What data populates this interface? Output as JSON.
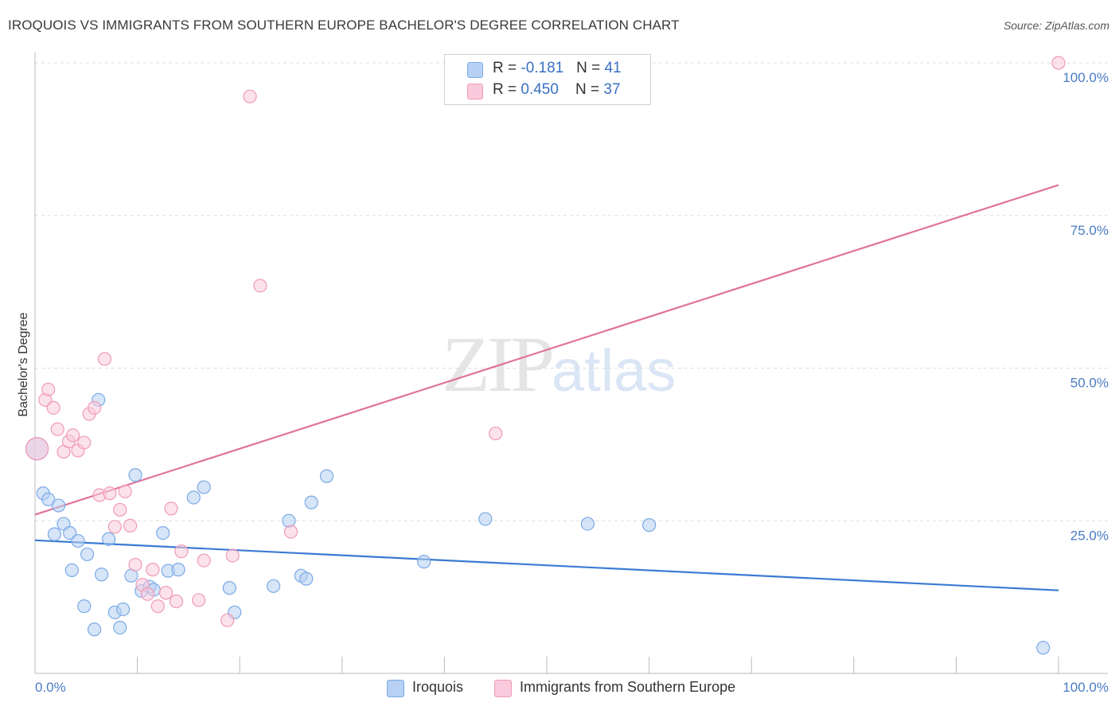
{
  "title": "IROQUOIS VS IMMIGRANTS FROM SOUTHERN EUROPE BACHELOR'S DEGREE CORRELATION CHART",
  "source": "Source: ZipAtlas.com",
  "watermark": {
    "zip": "ZIP",
    "atlas": "atlas"
  },
  "legend": {
    "rows": [
      {
        "r_label": "R = ",
        "r_value": "-0.181",
        "n_label": "N = ",
        "n_value": "41",
        "color": "#aac8f0"
      },
      {
        "r_label": "R = ",
        "r_value": "0.450",
        "n_label": "N = ",
        "n_value": "37",
        "color": "#f6bcd0"
      }
    ]
  },
  "chart_data": {
    "type": "scatter",
    "title": "IROQUOIS VS IMMIGRANTS FROM SOUTHERN EUROPE BACHELOR'S DEGREE CORRELATION CHART",
    "xlabel": "",
    "ylabel": "Bachelor's Degree",
    "xlim": [
      0,
      100
    ],
    "ylim": [
      0,
      100
    ],
    "x_tick_labels": [
      "0.0%",
      "100.0%"
    ],
    "y_ticks": [
      25,
      50,
      75,
      100
    ],
    "y_tick_labels": [
      "25.0%",
      "50.0%",
      "75.0%",
      "100.0%"
    ],
    "grid": "horizontal dashed",
    "legend_position": "top-center",
    "series": [
      {
        "name": "Iroquois",
        "color": "#7aaae6",
        "fill": "#b7d0f3",
        "trend": {
          "x": [
            0,
            100
          ],
          "y": [
            21.8,
            13.6
          ]
        },
        "points": [
          [
            0.2,
            36.8
          ],
          [
            0.8,
            29.5
          ],
          [
            1.3,
            28.5
          ],
          [
            1.9,
            22.8
          ],
          [
            2.3,
            27.5
          ],
          [
            2.8,
            24.5
          ],
          [
            3.4,
            23.0
          ],
          [
            3.6,
            16.9
          ],
          [
            4.2,
            21.7
          ],
          [
            4.8,
            11.0
          ],
          [
            5.1,
            19.5
          ],
          [
            5.8,
            7.2
          ],
          [
            6.2,
            44.8
          ],
          [
            6.5,
            16.2
          ],
          [
            7.2,
            22.0
          ],
          [
            7.8,
            10.0
          ],
          [
            8.3,
            7.5
          ],
          [
            8.6,
            10.5
          ],
          [
            9.4,
            16.0
          ],
          [
            9.8,
            32.5
          ],
          [
            10.4,
            13.5
          ],
          [
            11.2,
            14.2
          ],
          [
            11.6,
            13.7
          ],
          [
            12.5,
            23.0
          ],
          [
            13.0,
            16.8
          ],
          [
            14.0,
            17.0
          ],
          [
            15.5,
            28.8
          ],
          [
            16.5,
            30.5
          ],
          [
            19.0,
            14.0
          ],
          [
            19.5,
            10.0
          ],
          [
            23.3,
            14.3
          ],
          [
            24.8,
            25.0
          ],
          [
            26.0,
            16.0
          ],
          [
            26.5,
            15.5
          ],
          [
            27.0,
            28.0
          ],
          [
            28.5,
            32.3
          ],
          [
            38.0,
            18.3
          ],
          [
            44.0,
            25.3
          ],
          [
            54.0,
            24.5
          ],
          [
            60.0,
            24.3
          ],
          [
            98.5,
            4.2
          ]
        ]
      },
      {
        "name": "Immigrants from Southern Europe",
        "color": "#ef9ab8",
        "fill": "#f9cadb",
        "trend": {
          "x": [
            0,
            100
          ],
          "y": [
            26.0,
            80.0
          ]
        },
        "points": [
          [
            0.2,
            36.8
          ],
          [
            1.0,
            44.8
          ],
          [
            1.3,
            46.5
          ],
          [
            1.8,
            43.5
          ],
          [
            2.2,
            40.0
          ],
          [
            2.8,
            36.3
          ],
          [
            3.3,
            38.0
          ],
          [
            3.7,
            39.0
          ],
          [
            4.2,
            36.5
          ],
          [
            4.8,
            37.8
          ],
          [
            5.3,
            42.5
          ],
          [
            5.8,
            43.5
          ],
          [
            6.3,
            29.2
          ],
          [
            6.8,
            51.5
          ],
          [
            7.3,
            29.5
          ],
          [
            7.8,
            24.0
          ],
          [
            8.3,
            26.8
          ],
          [
            8.8,
            29.8
          ],
          [
            9.3,
            24.2
          ],
          [
            9.8,
            17.8
          ],
          [
            10.5,
            14.5
          ],
          [
            11.0,
            13.0
          ],
          [
            11.5,
            17.0
          ],
          [
            12.0,
            11.0
          ],
          [
            12.8,
            13.2
          ],
          [
            13.3,
            27.0
          ],
          [
            13.8,
            11.8
          ],
          [
            14.3,
            20.0
          ],
          [
            16.0,
            12.0
          ],
          [
            16.5,
            18.5
          ],
          [
            18.8,
            8.7
          ],
          [
            19.3,
            19.3
          ],
          [
            21.0,
            94.5
          ],
          [
            22.0,
            63.5
          ],
          [
            25.0,
            23.2
          ],
          [
            45.0,
            39.3
          ],
          [
            100.0,
            100.0
          ]
        ]
      }
    ]
  }
}
